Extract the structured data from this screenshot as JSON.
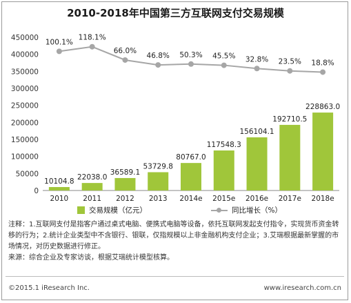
{
  "title": "2010-2018年中国第三方互联网支付交易规模",
  "colors": {
    "bar": "#a0c63a",
    "line": "#a6a6a6",
    "line_marker": "#a6a6a6"
  },
  "chart_data": {
    "type": "bar",
    "categories": [
      "2010",
      "2011",
      "2012",
      "2013",
      "2014e",
      "2015e",
      "2016e",
      "2017e",
      "2018e"
    ],
    "series": [
      {
        "name": "交易规模（亿元）",
        "type": "bar",
        "values": [
          10104.8,
          22038.0,
          36589.1,
          53729.8,
          80767.0,
          117548.3,
          156104.1,
          192710.5,
          228863.0
        ]
      },
      {
        "name": "同比增长（%）",
        "type": "line",
        "values": [
          100.1,
          118.1,
          66.0,
          46.8,
          50.3,
          45.5,
          32.8,
          23.5,
          18.8
        ]
      }
    ],
    "bar_labels": [
      "10104.8",
      "22038.0",
      "36589.1",
      "53729.8",
      "80767.0",
      "117548.3",
      "156104.1",
      "192710.5",
      "228863.0"
    ],
    "line_labels": [
      "100.1%",
      "118.1%",
      "66.0%",
      "46.8%",
      "50.3%",
      "45.5%",
      "32.8%",
      "23.5%",
      "18.8%"
    ],
    "y_ticks": [
      "0",
      "50000",
      "100000",
      "150000",
      "200000",
      "250000",
      "300000",
      "350000",
      "400000",
      "450000"
    ],
    "ylim": [
      0,
      450000
    ],
    "grid": false,
    "legend_position": "bottom"
  },
  "legend": {
    "bar_label": "交易规模（亿元）",
    "line_label": "同比增长（%）"
  },
  "notes": {
    "note": "注释：1.互联网支付是指客户通过桌式电脑、便携式电脑等设备，依托互联网发起支付指令，实现货币资金转移的行为；2.统计企业类型中不含银行、银联，仅指规模以上非金融机构支付企业；3.艾瑞根据最新掌握的市场情况，对历史数据进行修正。",
    "source": "来源：综合企业及专家访谈，根据艾瑞统计模型核算。"
  },
  "footer": {
    "copyright": "©2015.1 iResearch Inc.",
    "website": "www.iresearch.com.cn"
  }
}
